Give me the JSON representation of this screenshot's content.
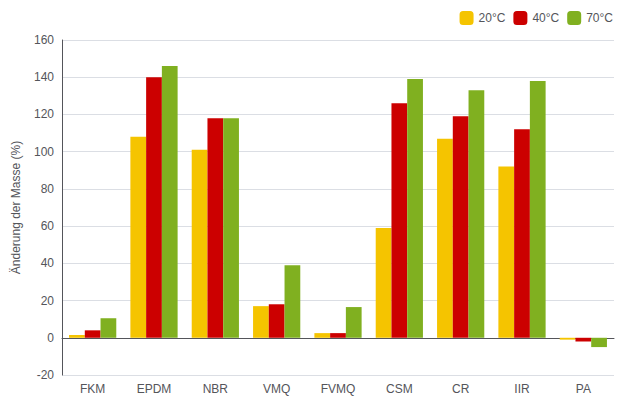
{
  "chart_data": {
    "type": "bar",
    "categories": [
      "FKM",
      "EPDM",
      "NBR",
      "VMQ",
      "FVMQ",
      "CSM",
      "CR",
      "IIR",
      "PA"
    ],
    "series": [
      {
        "name": "20°C",
        "color": "#F5C400",
        "values": [
          1.5,
          108,
          101,
          17,
          2.5,
          59,
          107,
          92,
          -1
        ]
      },
      {
        "name": "40°C",
        "color": "#CC0000",
        "values": [
          4,
          140,
          118,
          18,
          2.5,
          126,
          119,
          112,
          -2
        ]
      },
      {
        "name": "70°C",
        "color": "#80B020",
        "values": [
          10.5,
          146,
          118,
          39,
          16.5,
          139,
          133,
          138,
          -5
        ]
      }
    ],
    "ylabel": "Änderung der Masse (%)",
    "ylim": [
      -20,
      160
    ],
    "yticks": [
      -20,
      0,
      20,
      40,
      60,
      80,
      100,
      120,
      140,
      160
    ],
    "grid": true,
    "legend": "upper right"
  }
}
